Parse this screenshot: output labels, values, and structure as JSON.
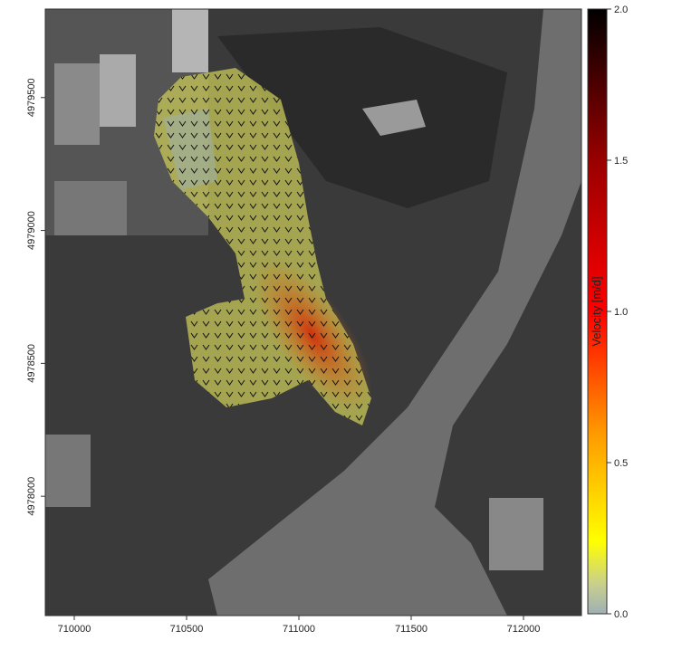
{
  "map": {
    "xlim": [
      709871,
      712258
    ],
    "xticks": [
      710000,
      710500,
      711000,
      711500,
      712000
    ],
    "ylim": [
      4977551,
      4979833
    ],
    "yticks": [
      4978000,
      4978500,
      4979000,
      4979500
    ]
  },
  "colorbar": {
    "label": "Velocity [m/d]",
    "lim": [
      0,
      2
    ],
    "ticks": [
      {
        "value": 0,
        "label": "0.0"
      },
      {
        "value": 0.5,
        "label": "0.5"
      },
      {
        "value": 1,
        "label": "1.0"
      },
      {
        "value": 1.5,
        "label": "1.5"
      },
      {
        "value": 2,
        "label": "2.0"
      }
    ]
  }
}
